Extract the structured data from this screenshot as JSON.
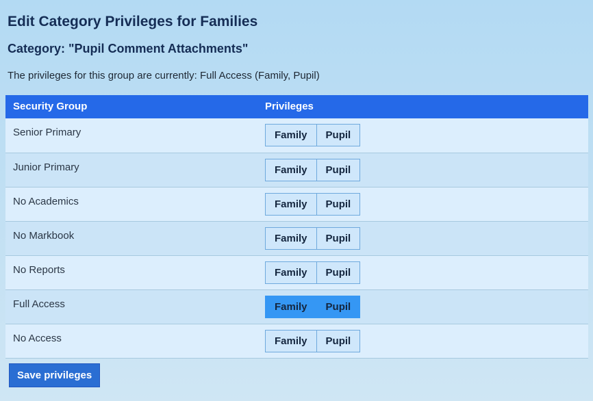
{
  "page": {
    "title": "Edit Category Privileges for Families",
    "subtitle": "Category: \"Pupil Comment Attachments\"",
    "status_line": "The privileges for this group are currently: Full Access (Family, Pupil)"
  },
  "table": {
    "headers": [
      "Security Group",
      "Privileges"
    ],
    "rows": [
      {
        "group": "Senior Primary",
        "buttons": [
          {
            "label": "Family",
            "selected": false
          },
          {
            "label": "Pupil",
            "selected": false
          }
        ]
      },
      {
        "group": "Junior Primary",
        "buttons": [
          {
            "label": "Family",
            "selected": false
          },
          {
            "label": "Pupil",
            "selected": false
          }
        ]
      },
      {
        "group": "No Academics",
        "buttons": [
          {
            "label": "Family",
            "selected": false
          },
          {
            "label": "Pupil",
            "selected": false
          }
        ]
      },
      {
        "group": "No Markbook",
        "buttons": [
          {
            "label": "Family",
            "selected": false
          },
          {
            "label": "Pupil",
            "selected": false
          }
        ]
      },
      {
        "group": "No Reports",
        "buttons": [
          {
            "label": "Family",
            "selected": false
          },
          {
            "label": "Pupil",
            "selected": false
          }
        ]
      },
      {
        "group": "Full Access",
        "buttons": [
          {
            "label": "Family",
            "selected": true
          },
          {
            "label": "Pupil",
            "selected": true
          }
        ]
      },
      {
        "group": "No Access",
        "buttons": [
          {
            "label": "Family",
            "selected": false
          },
          {
            "label": "Pupil",
            "selected": false
          }
        ]
      }
    ]
  },
  "save_button": {
    "label": "Save privileges"
  },
  "colors": {
    "page_background_top": "#b3daf3",
    "page_background_bottom": "#cfe6f4",
    "header_background": "#2569e8",
    "header_text": "#ffffff",
    "row_background_light": "#dceefd",
    "row_background_dark": "#cbe4f7",
    "row_border": "#a7c9df",
    "button_background": "#cfe7fb",
    "button_border": "#6ea9dd",
    "button_selected_background": "#3597f4",
    "button_text": "#14263f",
    "save_button_background": "#2a6ed3",
    "title_text": "#152d55",
    "body_text": "#2a3645"
  }
}
